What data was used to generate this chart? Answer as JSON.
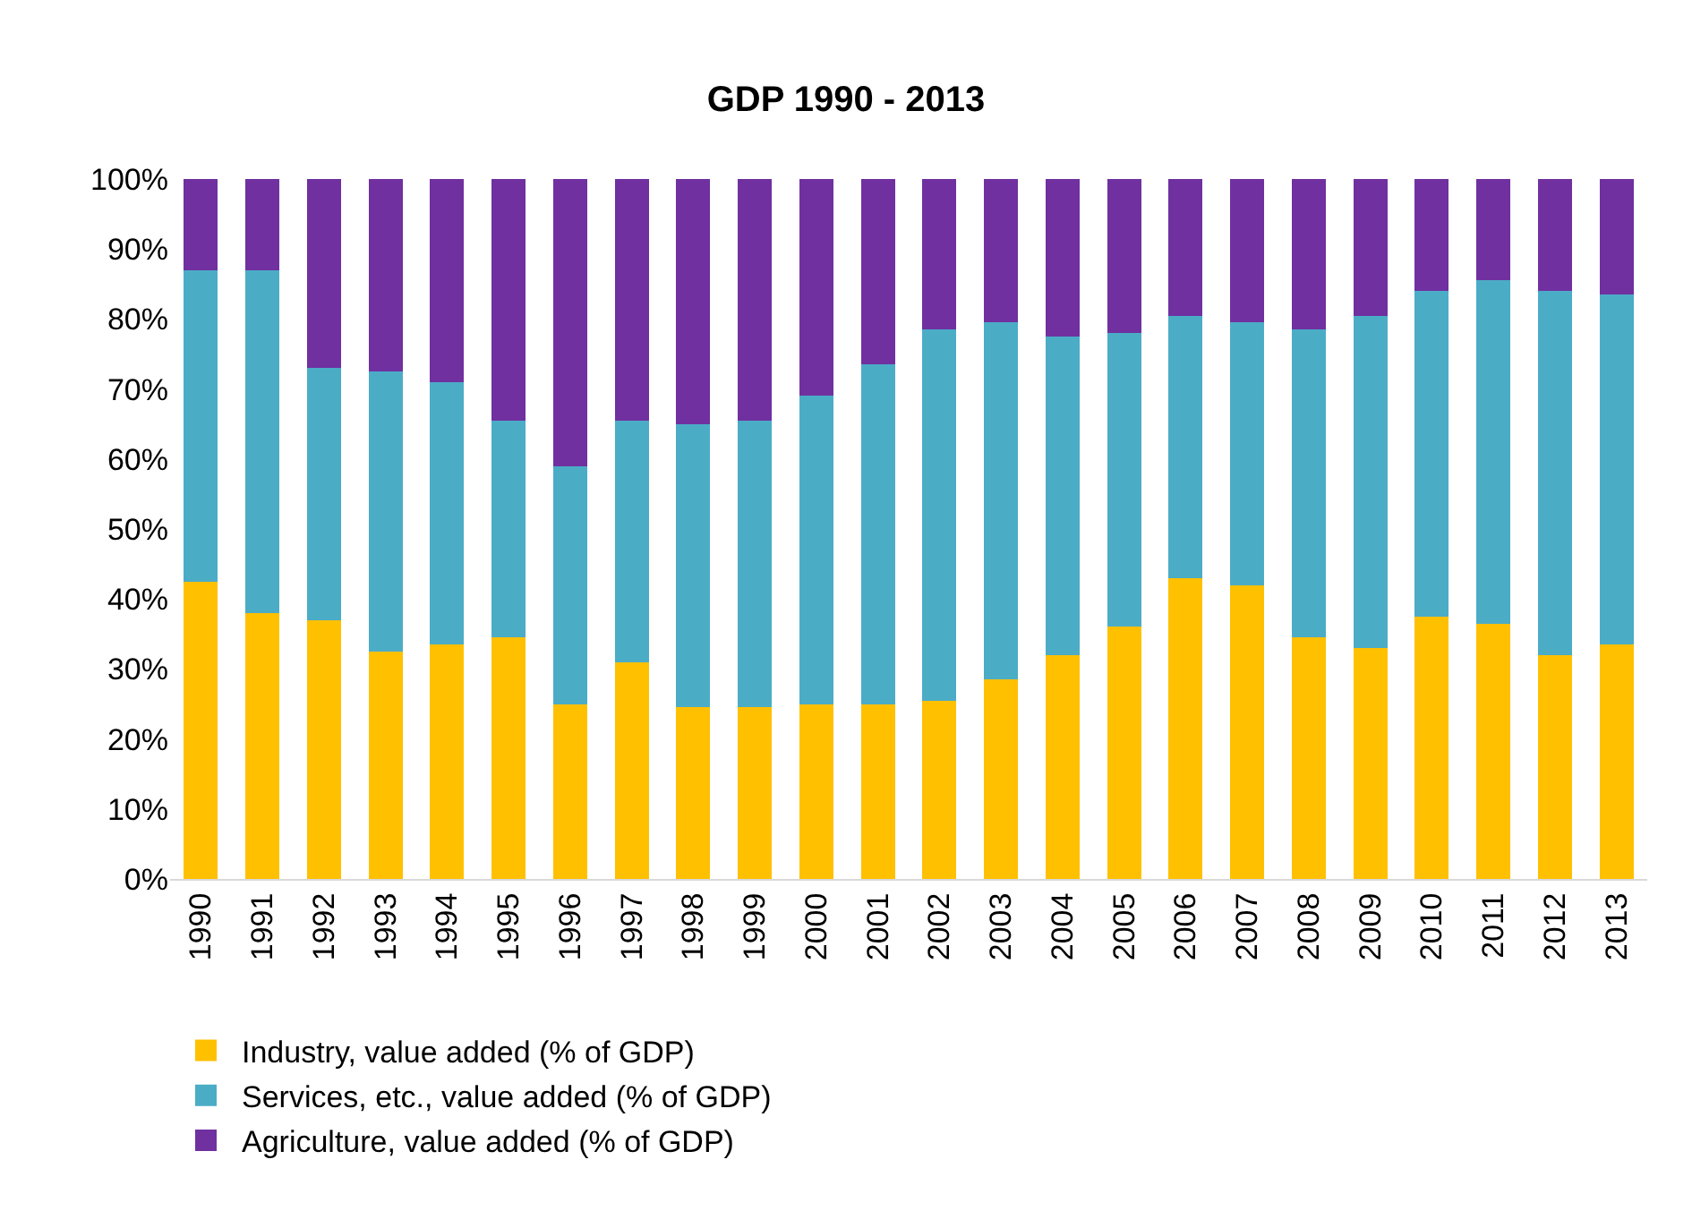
{
  "chart_data": {
    "type": "bar",
    "title": "GDP 1990 - 2013",
    "stacked": true,
    "grid": false,
    "legend": "bottom",
    "categories": [
      "1990",
      "1991",
      "1992",
      "1993",
      "1994",
      "1995",
      "1996",
      "1997",
      "1998",
      "1999",
      "2000",
      "2001",
      "2002",
      "2003",
      "2004",
      "2005",
      "2006",
      "2007",
      "2008",
      "2009",
      "2010",
      "2011",
      "2012",
      "2013"
    ],
    "ylim": [
      0,
      100
    ],
    "yticks": [
      {
        "value": 0,
        "label": "0%"
      },
      {
        "value": 10,
        "label": "10%"
      },
      {
        "value": 20,
        "label": "20%"
      },
      {
        "value": 30,
        "label": "30%"
      },
      {
        "value": 40,
        "label": "40%"
      },
      {
        "value": 50,
        "label": "50%"
      },
      {
        "value": 60,
        "label": "60%"
      },
      {
        "value": 70,
        "label": "70%"
      },
      {
        "value": 80,
        "label": "80%"
      },
      {
        "value": 90,
        "label": "90%"
      },
      {
        "value": 100,
        "label": "100%"
      }
    ],
    "series": [
      {
        "name": "Industry, value added (% of GDP)",
        "color": "#ffc000",
        "values": [
          42.5,
          38,
          37,
          32.5,
          33.5,
          34.5,
          25,
          31,
          24.5,
          24.5,
          25,
          25,
          25.5,
          28.5,
          32,
          36,
          43,
          42,
          34.5,
          33,
          37.5,
          36.5,
          32,
          33.5
        ]
      },
      {
        "name": "Services, etc., value added (% of GDP)",
        "color": "#4bacc6",
        "values": [
          44.5,
          49,
          36,
          40,
          37.5,
          31,
          34,
          34.5,
          40.5,
          41,
          44,
          48.5,
          53,
          51,
          45.5,
          42,
          37.5,
          37.5,
          44,
          47.5,
          46.5,
          49,
          52,
          50
        ]
      },
      {
        "name": "Agriculture, value added (% of GDP)",
        "color": "#7030a0",
        "values": [
          13,
          13,
          27,
          27.5,
          29,
          34.5,
          41,
          34.5,
          35,
          34.5,
          31,
          26.5,
          21.5,
          20.5,
          22.5,
          22,
          19.5,
          20.5,
          21.5,
          19.5,
          16,
          14.5,
          16,
          16.5
        ]
      }
    ]
  }
}
